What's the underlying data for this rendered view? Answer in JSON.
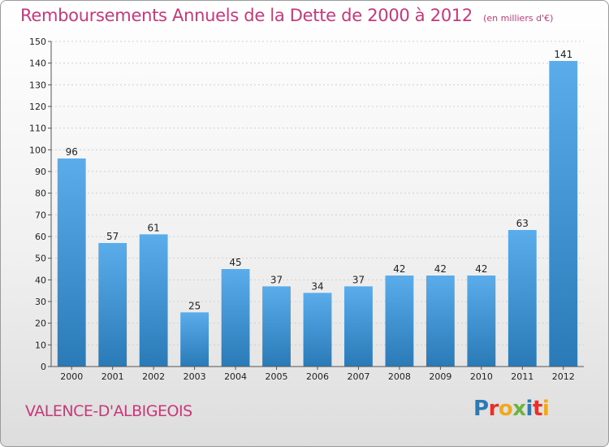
{
  "chart_data": {
    "type": "bar",
    "title": "Remboursements Annuels de la Dette de 2000 à 2012",
    "subtitle": "(en milliers d'€)",
    "categories": [
      "2000",
      "2001",
      "2002",
      "2003",
      "2004",
      "2005",
      "2006",
      "2007",
      "2008",
      "2009",
      "2010",
      "2011",
      "2012"
    ],
    "values": [
      96,
      57,
      61,
      25,
      45,
      37,
      34,
      37,
      42,
      42,
      42,
      63,
      141
    ],
    "ylim": [
      0,
      150
    ],
    "ytick_step": 10,
    "grid": true,
    "bar_color_top": "#5aacea",
    "bar_color_bottom": "#2a7ab8"
  },
  "footer": {
    "commune": "VALENCE-D'ALBIGEOIS",
    "logo_letters": [
      {
        "ch": "P",
        "color": "#2a7ab8"
      },
      {
        "ch": "r",
        "color": "#e4322b"
      },
      {
        "ch": "o",
        "color": "#f2a81d"
      },
      {
        "ch": "x",
        "color": "#6cb33f"
      },
      {
        "ch": "i",
        "color": "#2a7ab8"
      },
      {
        "ch": "t",
        "color": "#e4322b"
      },
      {
        "ch": "i",
        "color": "#f2a81d"
      }
    ]
  }
}
